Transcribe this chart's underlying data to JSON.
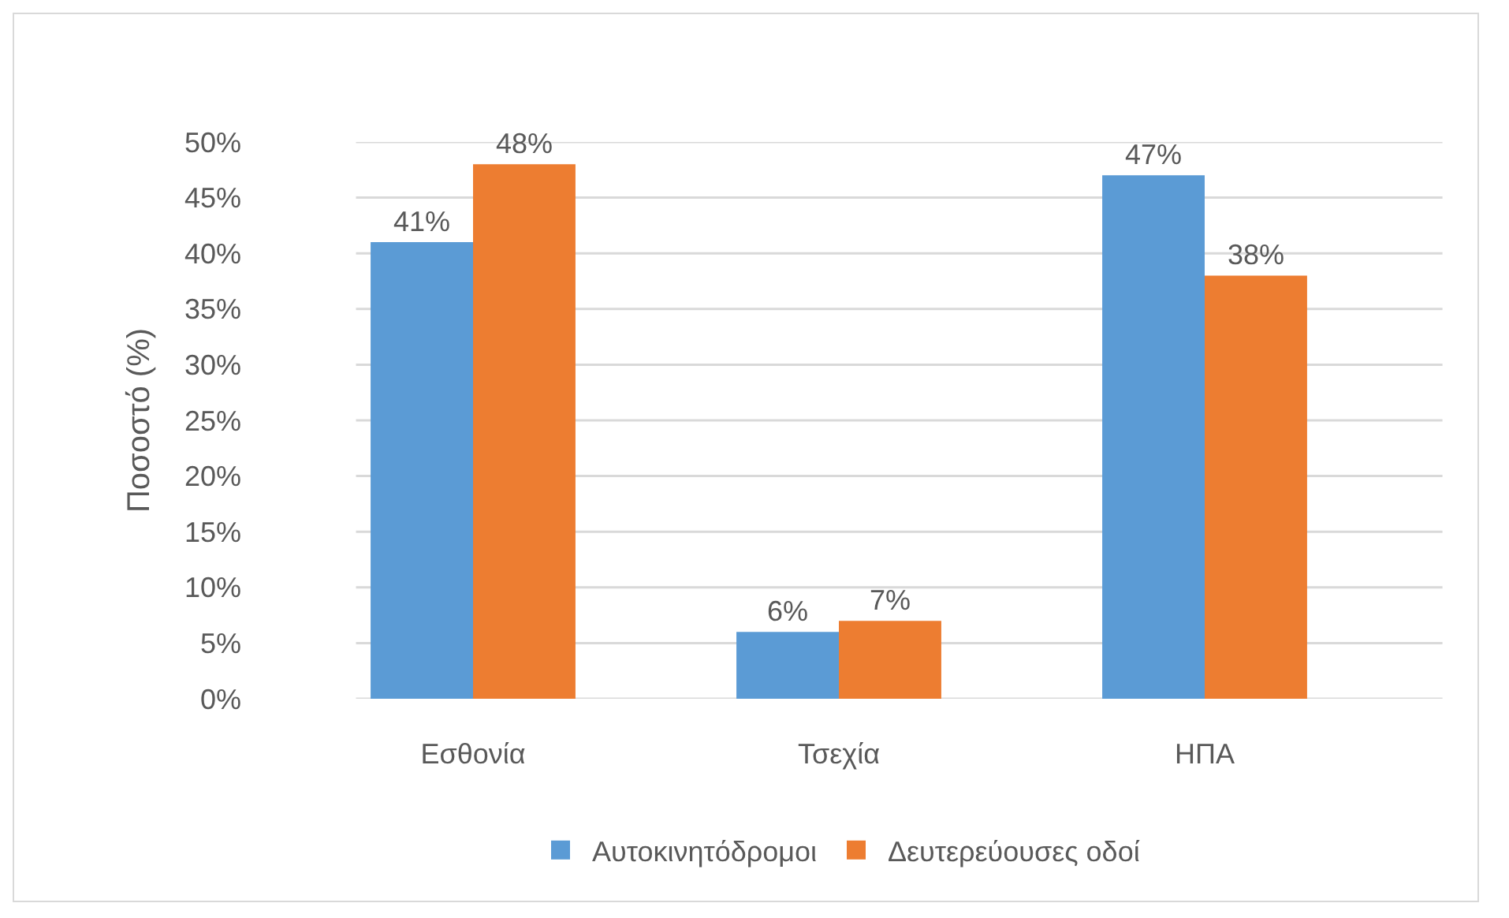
{
  "chart_data": {
    "type": "bar",
    "ylabel": "Ποσοστό (%)",
    "categories": [
      "Εσθονία",
      "Τσεχία",
      "ΗΠΑ"
    ],
    "series": [
      {
        "name": "Αυτοκινητόδρομοι",
        "color": "#5b9bd5",
        "values": [
          41,
          6,
          47
        ],
        "value_labels": [
          "41%",
          "6%",
          "47%"
        ]
      },
      {
        "name": "Δευτερεύουσες οδοί",
        "color": "#ed7d31",
        "values": [
          48,
          7,
          38
        ],
        "value_labels": [
          "48%",
          "7%",
          "38%"
        ]
      }
    ],
    "ylim": [
      0,
      50
    ],
    "yticks": [
      {
        "value": 0,
        "label": "0%"
      },
      {
        "value": 5,
        "label": "5%"
      },
      {
        "value": 10,
        "label": "10%"
      },
      {
        "value": 15,
        "label": "15%"
      },
      {
        "value": 20,
        "label": "20%"
      },
      {
        "value": 25,
        "label": "25%"
      },
      {
        "value": 30,
        "label": "30%"
      },
      {
        "value": 35,
        "label": "35%"
      },
      {
        "value": 40,
        "label": "40%"
      },
      {
        "value": 45,
        "label": "45%"
      },
      {
        "value": 50,
        "label": "50%"
      }
    ],
    "grid": "y",
    "legend": "bottom"
  }
}
